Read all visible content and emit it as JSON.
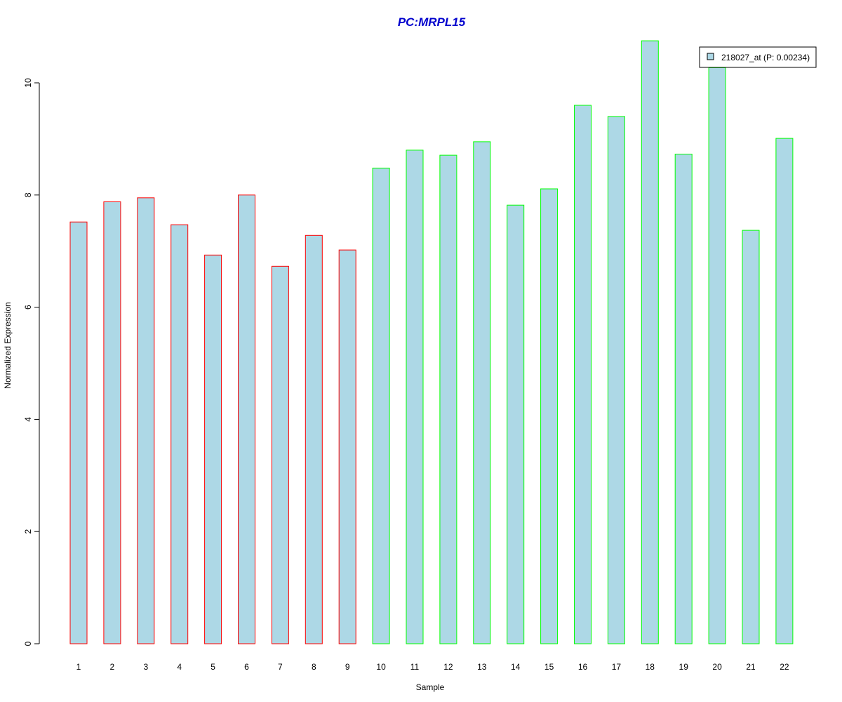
{
  "chart_data": {
    "type": "bar",
    "title": "PC:MRPL15",
    "xlabel": "Sample",
    "ylabel": "Normalized Expression",
    "categories": [
      "1",
      "2",
      "3",
      "4",
      "5",
      "6",
      "7",
      "8",
      "9",
      "10",
      "11",
      "12",
      "13",
      "14",
      "15",
      "16",
      "17",
      "18",
      "19",
      "20",
      "21",
      "22"
    ],
    "series": [
      {
        "name": "218027_at (P: 0.00234)",
        "values": [
          7.52,
          7.88,
          7.95,
          7.47,
          6.93,
          8.0,
          6.73,
          7.28,
          7.02,
          8.48,
          8.8,
          8.71,
          8.95,
          7.82,
          8.11,
          9.6,
          9.4,
          10.75,
          8.73,
          10.27,
          7.37,
          9.01
        ]
      }
    ],
    "ylim": [
      0,
      10.75
    ],
    "yticks": [
      "0",
      "2",
      "4",
      "6",
      "8",
      "10"
    ],
    "legend": "top-right",
    "grid": false,
    "colors": {
      "fill": "#add8e6",
      "title": "#0000cd",
      "group1_border": "#ff0000",
      "group2_border": "#00ff00",
      "axis": "#000000"
    },
    "border_groups": [
      "group1",
      "group1",
      "group1",
      "group1",
      "group1",
      "group1",
      "group1",
      "group1",
      "group1",
      "group2",
      "group2",
      "group2",
      "group2",
      "group2",
      "group2",
      "group2",
      "group2",
      "group2",
      "group2",
      "group2",
      "group2",
      "group2"
    ]
  }
}
